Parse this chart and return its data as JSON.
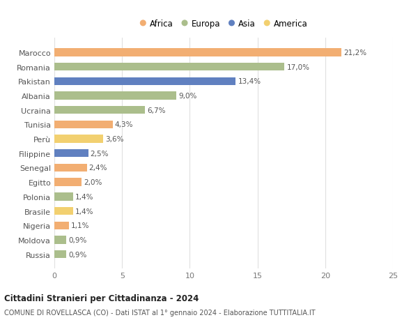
{
  "countries": [
    "Marocco",
    "Romania",
    "Pakistan",
    "Albania",
    "Ucraina",
    "Tunisia",
    "Perù",
    "Filippine",
    "Senegal",
    "Egitto",
    "Polonia",
    "Brasile",
    "Nigeria",
    "Moldova",
    "Russia"
  ],
  "values": [
    21.2,
    17.0,
    13.4,
    9.0,
    6.7,
    4.3,
    3.6,
    2.5,
    2.4,
    2.0,
    1.4,
    1.4,
    1.1,
    0.9,
    0.9
  ],
  "labels": [
    "21,2%",
    "17,0%",
    "13,4%",
    "9,0%",
    "6,7%",
    "4,3%",
    "3,6%",
    "2,5%",
    "2,4%",
    "2,0%",
    "1,4%",
    "1,4%",
    "1,1%",
    "0,9%",
    "0,9%"
  ],
  "continents": [
    "Africa",
    "Europa",
    "Asia",
    "Europa",
    "Europa",
    "Africa",
    "America",
    "Asia",
    "Africa",
    "Africa",
    "Europa",
    "America",
    "Africa",
    "Europa",
    "Europa"
  ],
  "colors": {
    "Africa": "#F2AE72",
    "Europa": "#ABBE8C",
    "Asia": "#6080C0",
    "America": "#F2D070"
  },
  "xlim": [
    0,
    25
  ],
  "xticks": [
    0,
    5,
    10,
    15,
    20,
    25
  ],
  "title": "Cittadini Stranieri per Cittadinanza - 2024",
  "subtitle": "COMUNE DI ROVELLASCA (CO) - Dati ISTAT al 1° gennaio 2024 - Elaborazione TUTTITALIA.IT",
  "bg_color": "#ffffff",
  "grid_color": "#e0e0e0"
}
